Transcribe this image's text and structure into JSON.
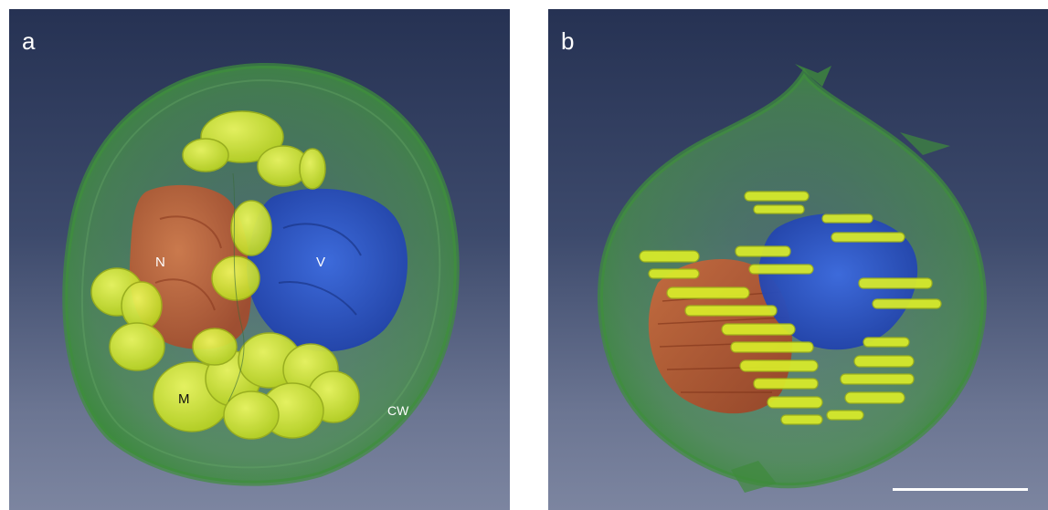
{
  "panels": [
    {
      "letter": "a",
      "labels": {
        "nucleus": "N",
        "vacuole": "V",
        "mitochondria": "M",
        "cell_wall": "CW"
      }
    },
    {
      "letter": "b"
    }
  ],
  "colors": {
    "background_top": "#263253",
    "background_bottom": "#7c85a0",
    "cell_wall": "#3f8a3c",
    "nucleus": "#c8572f",
    "vacuole": "#2f58c8",
    "mitochondria": "#d9ec2a",
    "label_light": "#ffffff",
    "label_dark": "#111111"
  }
}
